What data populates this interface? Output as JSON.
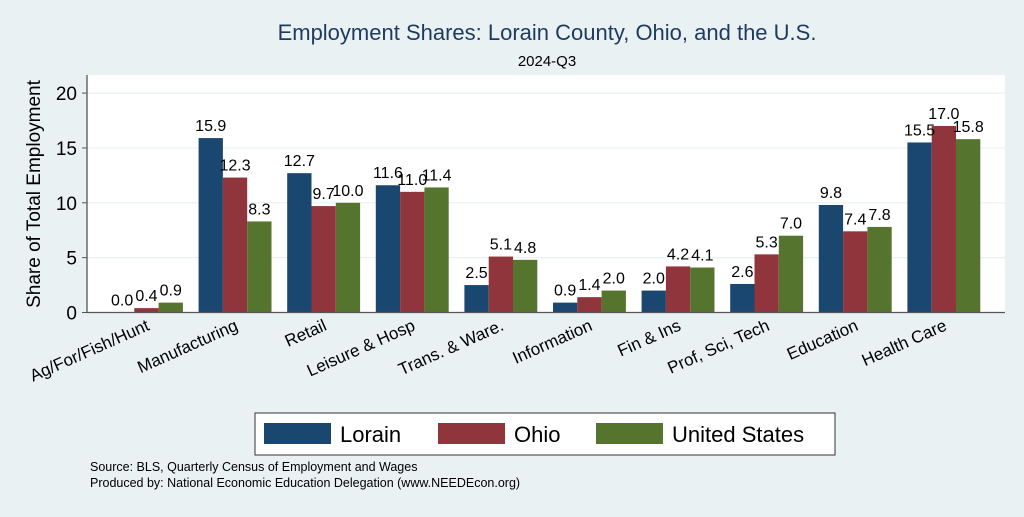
{
  "chart_data": {
    "type": "bar",
    "title": "Employment Shares: Lorain County, Ohio, and the U.S.",
    "subtitle": "2024-Q3",
    "ylabel": "Share of Total Employment",
    "xlabel": "",
    "ylim": [
      0,
      21.6
    ],
    "yticks": [
      0,
      5,
      10,
      15,
      20
    ],
    "grid": true,
    "legend_position": "bottom",
    "categories": [
      "Ag/For/Fish/Hunt",
      "Manufacturing",
      "Retail",
      "Leisure & Hosp",
      "Trans. & Ware.",
      "Information",
      "Fin & Ins",
      "Prof, Sci, Tech",
      "Education",
      "Health Care"
    ],
    "series": [
      {
        "name": "Lorain",
        "color": "#1a476f",
        "values": [
          0.0,
          15.9,
          12.7,
          11.6,
          2.5,
          0.9,
          2.0,
          2.6,
          9.8,
          15.5
        ]
      },
      {
        "name": "Ohio",
        "color": "#90353b",
        "values": [
          0.4,
          12.3,
          9.7,
          11.0,
          5.1,
          1.4,
          4.2,
          5.3,
          7.4,
          17.0
        ]
      },
      {
        "name": "United States",
        "color": "#55752f",
        "values": [
          0.9,
          8.3,
          10.0,
          11.4,
          4.8,
          2.0,
          4.1,
          7.0,
          7.8,
          15.8
        ]
      }
    ]
  },
  "notes": [
    "Source: BLS, Quarterly Census of Employment and Wages",
    "Produced by: National Economic Education Delegation (www.NEEDEcon.org)"
  ]
}
